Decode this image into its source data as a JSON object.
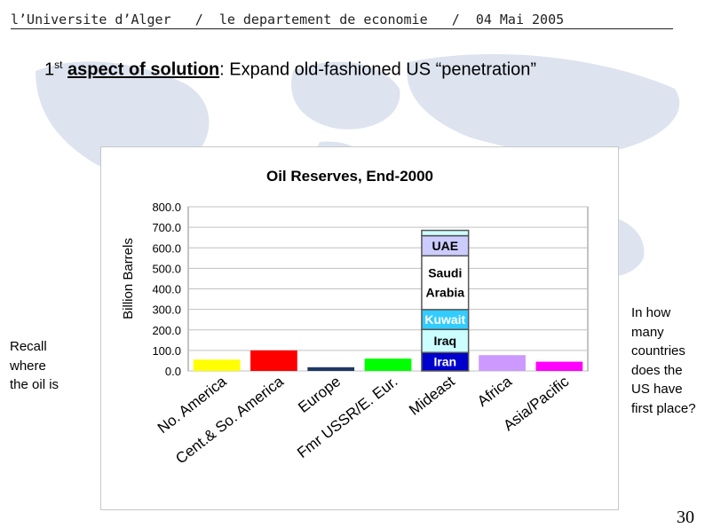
{
  "header": {
    "university": "l’Universite d’Alger",
    "sep1": "/",
    "department": "le departement de economie",
    "sep2": "/",
    "date": "04 Mai 2005"
  },
  "slide": {
    "title_ordinal": "1",
    "title_sup": "st",
    "title_bold": "aspect of solution",
    "title_rest": ": Expand old-fashioned US “penetration”",
    "left_note": "Recall where the oil is",
    "right_note": "In how many countries does the US have first place?",
    "page_number": "30"
  },
  "chart_data": {
    "type": "bar",
    "title": "Oil Reserves, End-2000",
    "xlabel": "",
    "ylabel": "Billion Barrels",
    "ylim": [
      0,
      800
    ],
    "yticks": [
      "0.0",
      "100.0",
      "200.0",
      "300.0",
      "400.0",
      "500.0",
      "600.0",
      "700.0",
      "800.0"
    ],
    "grid": true,
    "categories": [
      "No. America",
      "Cent.& So. America",
      "Europe",
      "Fmr USSR/E. Eur.",
      "Mideast",
      "Africa",
      "Asia/Pacific"
    ],
    "values": [
      55,
      100,
      18,
      60,
      685,
      77,
      45
    ],
    "colors": [
      "#ffff00",
      "#ff0000",
      "#1f3864",
      "#00ff00",
      null,
      "#cc99ff",
      "#ff00ff"
    ],
    "mideast_stack": [
      {
        "label": "Iran",
        "value": 90,
        "color": "#0000cc",
        "text_color": "#ffffff"
      },
      {
        "label": "Iraq",
        "value": 112,
        "color": "#ccffff",
        "text_color": "#000000"
      },
      {
        "label": "Kuwait",
        "value": 97,
        "color": "#33ccff",
        "text_color": "#ffffff"
      },
      {
        "label": "Saudi Arabia",
        "value": 262,
        "color": "#ffffff",
        "text_color": "#000000"
      },
      {
        "label": "UAE",
        "value": 98,
        "color": "#ccccff",
        "text_color": "#000000"
      },
      {
        "label": "",
        "value": 26,
        "color": "#ccffff",
        "text_color": "#000000"
      }
    ]
  },
  "colors": {
    "map_land": "#dde3ef",
    "bar_outline": "#555555",
    "grid": "#c0c0c0",
    "text": "#000000"
  }
}
